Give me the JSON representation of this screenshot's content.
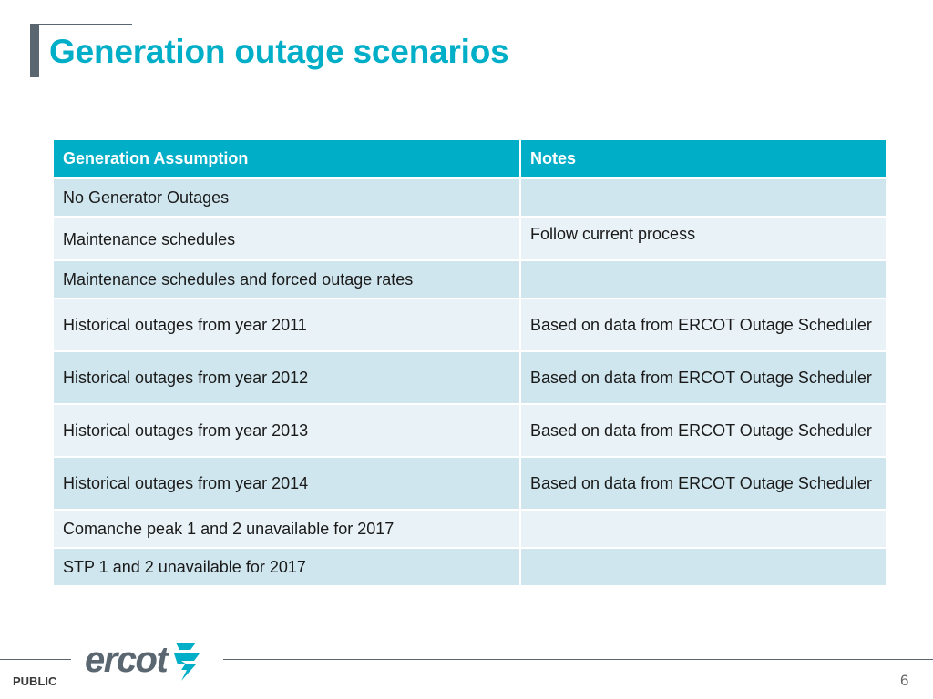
{
  "slide": {
    "title": "Generation outage scenarios",
    "footer_label": "PUBLIC",
    "page_number": "6",
    "logo_text": "ercot"
  },
  "table": {
    "headers": [
      "Generation Assumption",
      "Notes"
    ],
    "rows": [
      {
        "assumption": "No Generator Outages",
        "notes": ""
      },
      {
        "assumption": "Maintenance schedules",
        "notes": "Follow current process"
      },
      {
        "assumption": "Maintenance schedules and forced outage rates",
        "notes": ""
      },
      {
        "assumption": "Historical outages from year 2011",
        "notes": "Based on data from ERCOT Outage Scheduler"
      },
      {
        "assumption": "Historical outages from year 2012",
        "notes": "Based on data from ERCOT Outage Scheduler"
      },
      {
        "assumption": "Historical outages from year 2013",
        "notes": "Based on data from ERCOT Outage Scheduler"
      },
      {
        "assumption": "Historical outages from year 2014",
        "notes": "Based on data from ERCOT Outage Scheduler"
      },
      {
        "assumption": "Comanche peak 1 and 2 unavailable for 2017",
        "notes": ""
      },
      {
        "assumption": "STP 1 and 2 unavailable for 2017",
        "notes": ""
      }
    ]
  },
  "colors": {
    "accent": "#00aec7",
    "dark_gray": "#5b6770",
    "row_odd": "#d0e6ee",
    "row_even": "#e9f2f6"
  }
}
